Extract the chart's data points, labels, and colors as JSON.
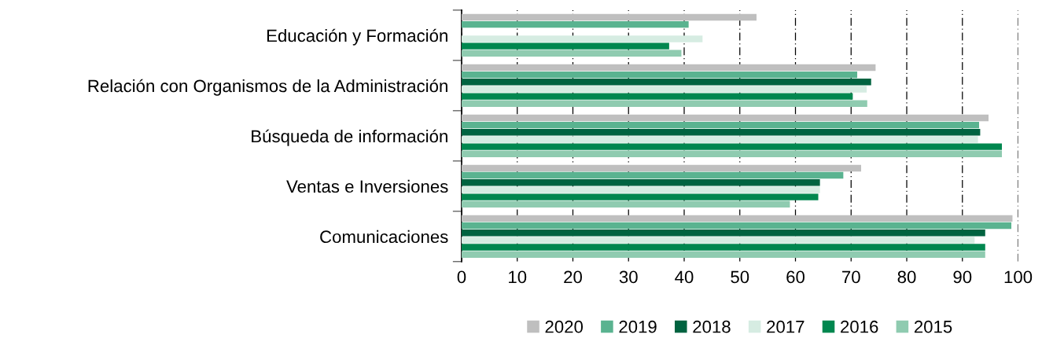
{
  "chart_data": {
    "type": "bar",
    "orientation": "horizontal",
    "categories": [
      "Educación y Formación",
      "Relación con Organismos de la Administración",
      "Búsqueda de información",
      "Ventas e Inversiones",
      "Comunicaciones"
    ],
    "series": [
      {
        "name": "2020",
        "color": "#bfbfbf",
        "values": [
          53,
          74.4,
          94.7,
          71.8,
          99.0
        ]
      },
      {
        "name": "2019",
        "color": "#5ab390",
        "values": [
          40.8,
          71.1,
          93.0,
          68.6,
          98.8
        ]
      },
      {
        "name": "2018",
        "color": "#006340",
        "values": [
          null,
          73.6,
          93.2,
          64.4,
          94.1
        ]
      },
      {
        "name": "2017",
        "color": "#d6ece2",
        "values": [
          43.3,
          72.8,
          92.8,
          64.4,
          92.2
        ]
      },
      {
        "name": "2016",
        "color": "#00874f",
        "values": [
          37.3,
          70.3,
          97.1,
          64.1,
          94.1
        ]
      },
      {
        "name": "2015",
        "color": "#8fcbb0",
        "values": [
          39.5,
          72.9,
          97.1,
          59.0,
          94.1
        ]
      }
    ],
    "xlim": [
      0,
      100
    ],
    "xticks": [
      0,
      10,
      20,
      30,
      40,
      50,
      60,
      70,
      80,
      90,
      100
    ],
    "grid": "x",
    "legend": "bottom"
  }
}
